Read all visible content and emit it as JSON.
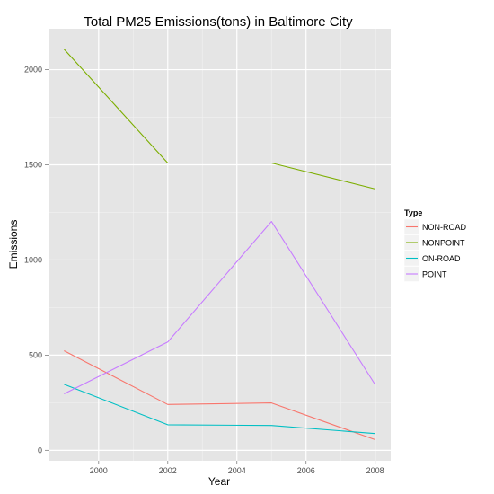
{
  "chart_data": {
    "type": "line",
    "title": "Total PM25 Emissions(tons) in Baltimore City",
    "xlabel": "Year",
    "ylabel": "Emissions",
    "x": [
      1999,
      2002,
      2005,
      2008
    ],
    "xticks": [
      2000,
      2002,
      2004,
      2006,
      2008
    ],
    "yticks": [
      0,
      500,
      1000,
      1500,
      2000
    ],
    "xlim": [
      1998.55,
      2008.45
    ],
    "ylim": [
      -55,
      2215
    ],
    "grid": true,
    "background": "#e5e5e5",
    "legend": {
      "title": "Type",
      "position": "right"
    },
    "series": [
      {
        "name": "NON-ROAD",
        "color": "#f8766d",
        "values": [
          522.94,
          240.85,
          248.93,
          55.82
        ]
      },
      {
        "name": "NONPOINT",
        "color": "#7cae00",
        "values": [
          2107.63,
          1509.5,
          1509.5,
          1373.21
        ]
      },
      {
        "name": "ON-ROAD",
        "color": "#00bfc4",
        "values": [
          346.82,
          134.31,
          130.43,
          88.28
        ]
      },
      {
        "name": "POINT",
        "color": "#c77cff",
        "values": [
          296.8,
          569.26,
          1202.49,
          344.98
        ]
      }
    ]
  }
}
